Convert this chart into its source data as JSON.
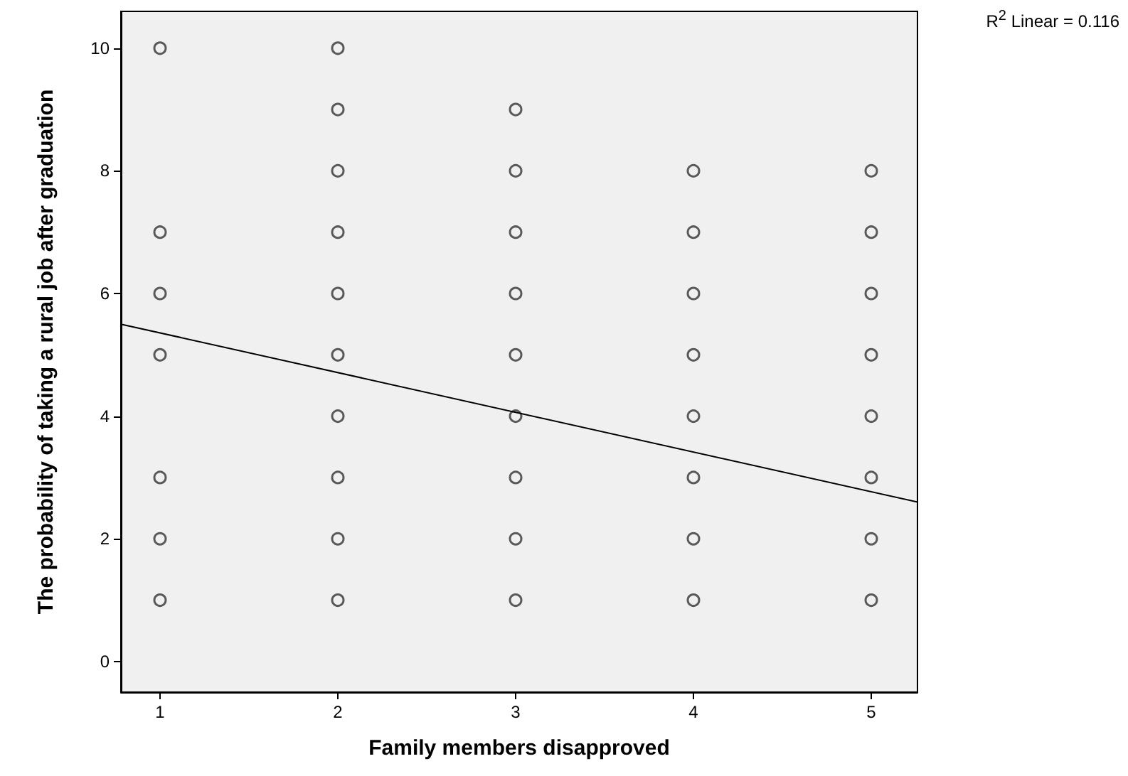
{
  "chart_data": {
    "type": "scatter",
    "xlabel": "Family members disapproved",
    "ylabel": "The probability of taking a rural job after graduation",
    "annotations": [
      "R$^{2}$ Linear = 0.116"
    ],
    "xlim": [
      0.78,
      5.26
    ],
    "xticks": [
      1,
      2,
      3,
      4,
      5
    ],
    "ylim": [
      -0.5,
      10.6
    ],
    "yticks": [
      0,
      2,
      4,
      6,
      8,
      10
    ],
    "marker": "circle",
    "series": [
      {
        "color": "#333333",
        "x": [
          1,
          1,
          1,
          1,
          1,
          1,
          1,
          2,
          2,
          2,
          2,
          2,
          2,
          2,
          2,
          2,
          2,
          3,
          3,
          3,
          3,
          3,
          3,
          3,
          3,
          3,
          4,
          4,
          4,
          4,
          4,
          4,
          4,
          4,
          5,
          5,
          5,
          5,
          5,
          5,
          5,
          5
        ],
        "values": [
          10,
          7,
          6,
          5,
          3,
          2,
          1,
          10,
          9,
          8,
          7,
          6,
          5,
          4,
          3,
          2,
          1,
          9,
          8,
          7,
          6,
          5,
          4,
          3,
          2,
          1,
          8,
          7,
          6,
          5,
          4,
          3,
          2,
          1,
          8,
          7,
          6,
          5,
          4,
          3,
          2,
          1
        ]
      },
      {
        "type": "line",
        "color": "#000000",
        "marker": "none",
        "x": [
          0.78,
          5.26
        ],
        "values": [
          5.5,
          2.6
        ]
      }
    ]
  }
}
